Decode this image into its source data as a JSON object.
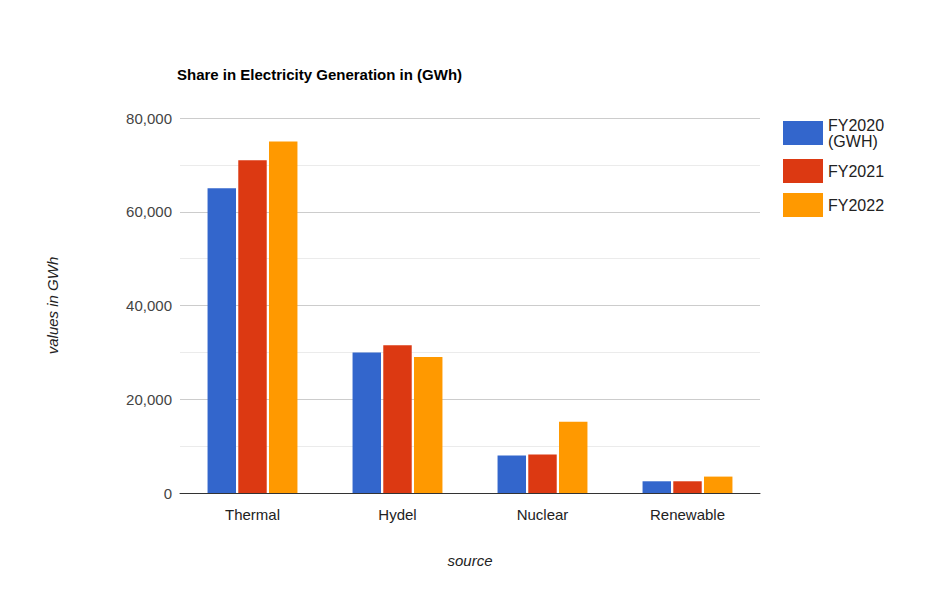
{
  "chart_data": {
    "type": "bar",
    "title": "Share in Electricity Generation in (GWh)",
    "x_label": "source",
    "y_label": "values in GWh",
    "categories": [
      "Thermal",
      "Hydel",
      "Nuclear",
      "Renewable"
    ],
    "series": [
      {
        "name": "FY2020 (GWH)",
        "color": "#3366cc",
        "values": [
          65000,
          30000,
          8000,
          2500
        ]
      },
      {
        "name": "FY2021",
        "color": "#dc3912",
        "values": [
          71000,
          31500,
          8200,
          2500
        ]
      },
      {
        "name": "FY2022",
        "color": "#ff9900",
        "values": [
          75000,
          29000,
          15200,
          3500
        ]
      }
    ],
    "ylim": [
      0,
      80000
    ],
    "yticks": [
      0,
      {
        "value": 20000,
        "label": "20,000"
      },
      {
        "value": 40000,
        "label": "40,000"
      },
      {
        "value": 60000,
        "label": "60,000"
      },
      {
        "value": 80000,
        "label": "80,000"
      }
    ],
    "grid": true,
    "legend": "right"
  }
}
